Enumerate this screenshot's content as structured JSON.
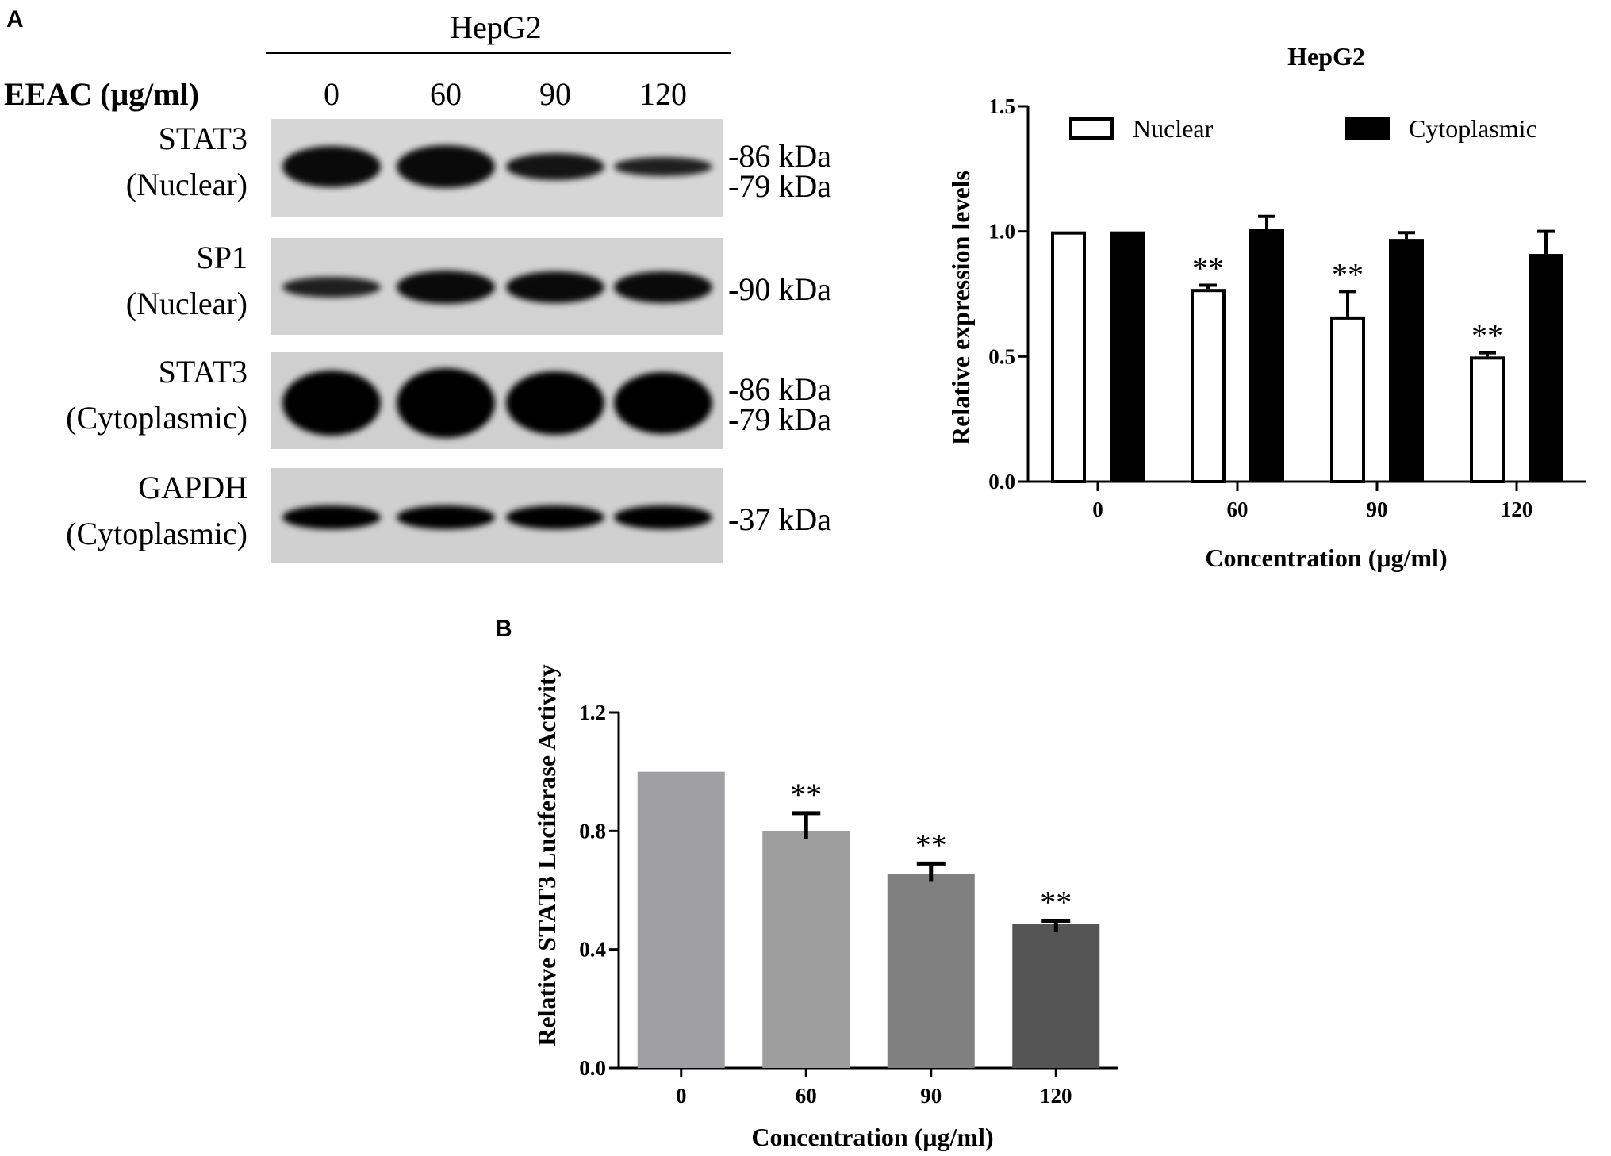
{
  "panels": {
    "a": "A",
    "b": "B"
  },
  "blot": {
    "cell_line": "HepG2",
    "treatment_label": "EEAC (μg/ml)",
    "lanes": [
      "0",
      "60",
      "90",
      "120"
    ],
    "rows": [
      {
        "name": "STAT3",
        "fraction": "(Nuclear)",
        "markers": [
          "-86 kDa",
          "-79 kDa"
        ]
      },
      {
        "name": "SP1",
        "fraction": "(Nuclear)",
        "markers": [
          "-90 kDa"
        ]
      },
      {
        "name": "STAT3",
        "fraction": "(Cytoplasmic)",
        "markers": [
          "-86 kDa",
          "-79 kDa"
        ]
      },
      {
        "name": "GAPDH",
        "fraction": "(Cytoplasmic)",
        "markers": [
          "-37 kDa"
        ]
      }
    ]
  },
  "chart_data": [
    {
      "type": "bar",
      "title": "HepG2",
      "xlabel": "Concentration (μg/ml)",
      "ylabel": "Relative expression levels",
      "categories": [
        "0",
        "60",
        "90",
        "120"
      ],
      "ylim": [
        0.0,
        1.5
      ],
      "yticks": [
        "0.0",
        "0.5",
        "1.0",
        "1.5"
      ],
      "legend": "top",
      "series": [
        {
          "name": "Nuclear",
          "values": [
            1.0,
            0.77,
            0.66,
            0.5
          ],
          "errors": [
            0,
            0.015,
            0.1,
            0.015
          ],
          "fill": "#ffffff",
          "stroke": "#000000"
        },
        {
          "name": "Cytoplasmic",
          "values": [
            1.0,
            1.01,
            0.97,
            0.91
          ],
          "errors": [
            0,
            0.05,
            0.025,
            0.09
          ],
          "fill": "#000000",
          "stroke": "#000000"
        }
      ],
      "annotations": [
        {
          "series": 0,
          "category": "60",
          "text": "**"
        },
        {
          "series": 0,
          "category": "90",
          "text": "**"
        },
        {
          "series": 0,
          "category": "120",
          "text": "**"
        }
      ]
    },
    {
      "type": "bar",
      "title": "",
      "xlabel": "Concentration (μg/ml)",
      "ylabel": "Relative STAT3 Luciferase Activity",
      "categories": [
        "0",
        "60",
        "90",
        "120"
      ],
      "ylim": [
        0.0,
        1.2
      ],
      "yticks": [
        "0.0",
        "0.4",
        "0.8",
        "1.2"
      ],
      "values": [
        1.0,
        0.8,
        0.655,
        0.485
      ],
      "errors": [
        0,
        0.06,
        0.035,
        0.012
      ],
      "bar_colors": [
        "#a0a0a4",
        "#9e9e9e",
        "#808080",
        "#555555"
      ],
      "annotations": [
        {
          "category": "60",
          "text": "**"
        },
        {
          "category": "90",
          "text": "**"
        },
        {
          "category": "120",
          "text": "**"
        }
      ]
    }
  ]
}
